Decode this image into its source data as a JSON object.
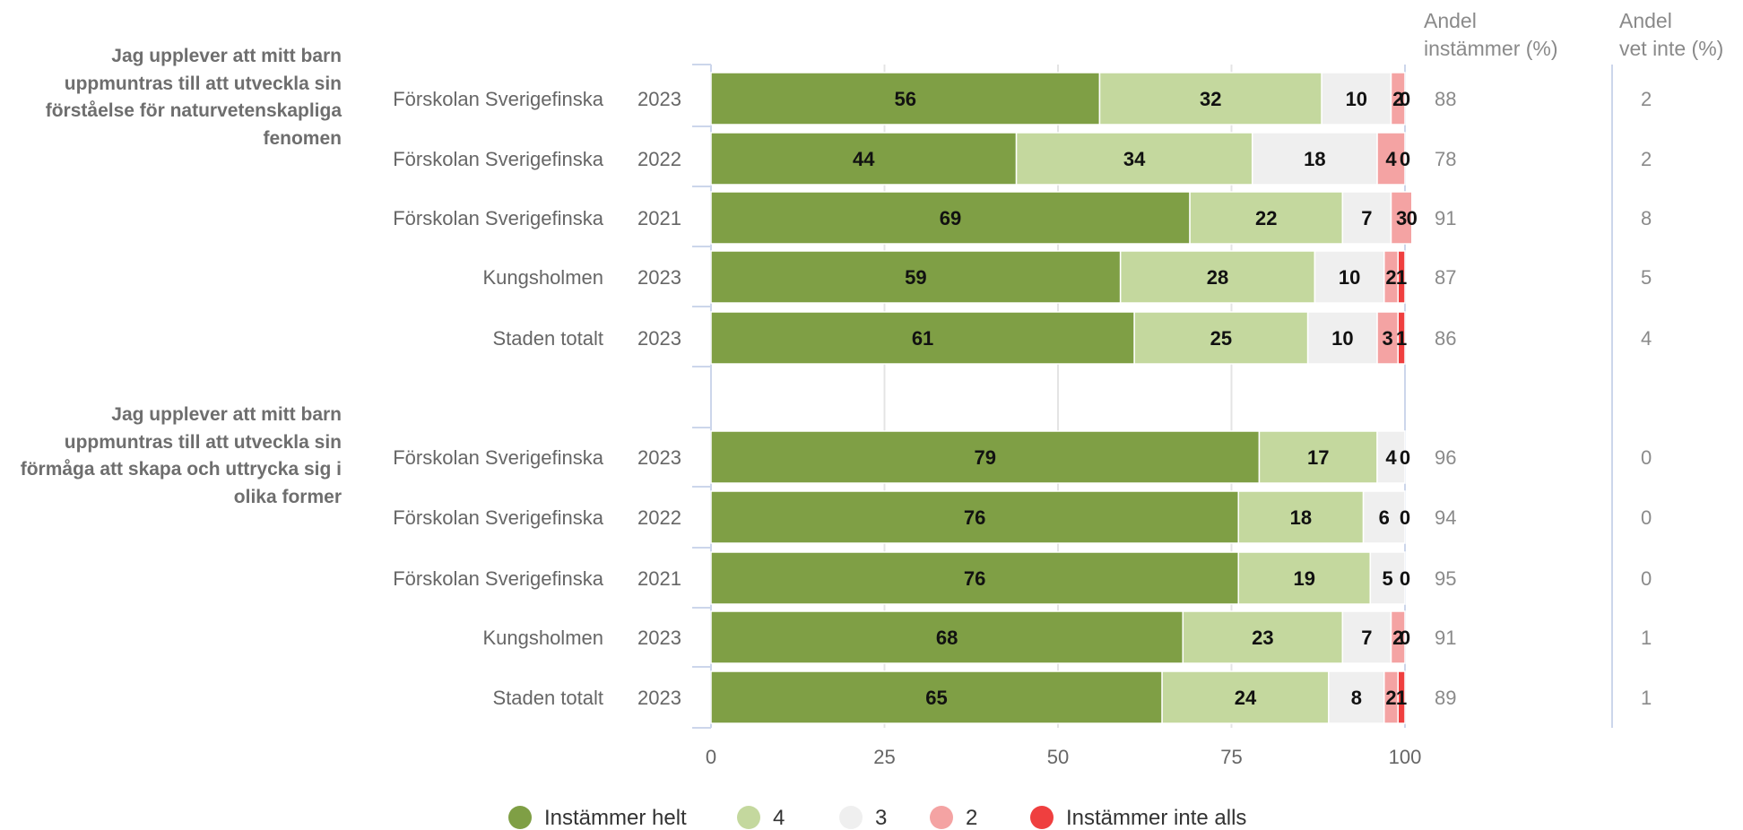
{
  "columns": {
    "share_agree": "Andel\ninstämmer (%)",
    "share_dont_know": "Andel\nvet inte (%)"
  },
  "legend": [
    {
      "label": "Instämmer helt",
      "color": "#7f9f45"
    },
    {
      "label": "4",
      "color": "#c4d89e"
    },
    {
      "label": "3",
      "color": "#efefef"
    },
    {
      "label": "2",
      "color": "#f4a3a3"
    },
    {
      "label": "Instämmer inte alls",
      "color": "#ef3f3f"
    }
  ],
  "chart_data": {
    "type": "bar",
    "orientation": "horizontal",
    "stacked": true,
    "xlim": [
      0,
      100
    ],
    "xticks": [
      "0",
      "25",
      "50",
      "75",
      "100"
    ],
    "grid": true,
    "legend_position": "bottom",
    "series_names": [
      "Instämmer helt",
      "4",
      "3",
      "2",
      "Instämmer inte alls"
    ],
    "groups": [
      {
        "question": "Jag upplever att mitt barn uppmuntras till att utveckla sin förståelse för naturvetenskapliga fenomen",
        "rows": [
          {
            "unit": "Förskolan Sverigefinska",
            "year": "2023",
            "values": [
              56,
              32,
              10,
              2,
              0
            ],
            "labels": [
              "56",
              "32",
              "10",
              "2",
              "0"
            ],
            "share_agree": "88",
            "share_dont_know": "2"
          },
          {
            "unit": "Förskolan Sverigefinska",
            "year": "2022",
            "values": [
              44,
              34,
              18,
              4,
              0
            ],
            "labels": [
              "44",
              "34",
              "18",
              "4",
              "0"
            ],
            "share_agree": "78",
            "share_dont_know": "2"
          },
          {
            "unit": "Förskolan Sverigefinska",
            "year": "2021",
            "values": [
              69,
              22,
              7,
              3,
              0
            ],
            "labels": [
              "69",
              "22",
              "7",
              "3",
              "0"
            ],
            "share_agree": "91",
            "share_dont_know": "8"
          },
          {
            "unit": "Kungsholmen",
            "year": "2023",
            "values": [
              59,
              28,
              10,
              2,
              1
            ],
            "labels": [
              "59",
              "28",
              "10",
              "2",
              "1"
            ],
            "share_agree": "87",
            "share_dont_know": "5"
          },
          {
            "unit": "Staden totalt",
            "year": "2023",
            "values": [
              61,
              25,
              10,
              3,
              1
            ],
            "labels": [
              "61",
              "25",
              "10",
              "3",
              "1"
            ],
            "share_agree": "86",
            "share_dont_know": "4"
          }
        ]
      },
      {
        "question": "Jag upplever att mitt barn uppmuntras till att utveckla sin förmåga att skapa och uttrycka sig i olika former",
        "rows": [
          {
            "unit": "Förskolan Sverigefinska",
            "year": "2023",
            "values": [
              79,
              17,
              4,
              0,
              0
            ],
            "labels": [
              "79",
              "17",
              "4",
              "0",
              ""
            ],
            "share_agree": "96",
            "share_dont_know": "0"
          },
          {
            "unit": "Förskolan Sverigefinska",
            "year": "2022",
            "values": [
              76,
              18,
              6,
              0,
              0
            ],
            "labels": [
              "76",
              "18",
              "6",
              "0",
              ""
            ],
            "share_agree": "94",
            "share_dont_know": "0"
          },
          {
            "unit": "Förskolan Sverigefinska",
            "year": "2021",
            "values": [
              76,
              19,
              5,
              0,
              0
            ],
            "labels": [
              "76",
              "19",
              "5",
              "0",
              ""
            ],
            "share_agree": "95",
            "share_dont_know": "0"
          },
          {
            "unit": "Kungsholmen",
            "year": "2023",
            "values": [
              68,
              23,
              7,
              2,
              0
            ],
            "labels": [
              "68",
              "23",
              "7",
              "2",
              "0"
            ],
            "share_agree": "91",
            "share_dont_know": "1"
          },
          {
            "unit": "Staden totalt",
            "year": "2023",
            "values": [
              65,
              24,
              8,
              2,
              1
            ],
            "labels": [
              "65",
              "24",
              "8",
              "2",
              "1"
            ],
            "share_agree": "89",
            "share_dont_know": "1"
          }
        ]
      }
    ]
  }
}
